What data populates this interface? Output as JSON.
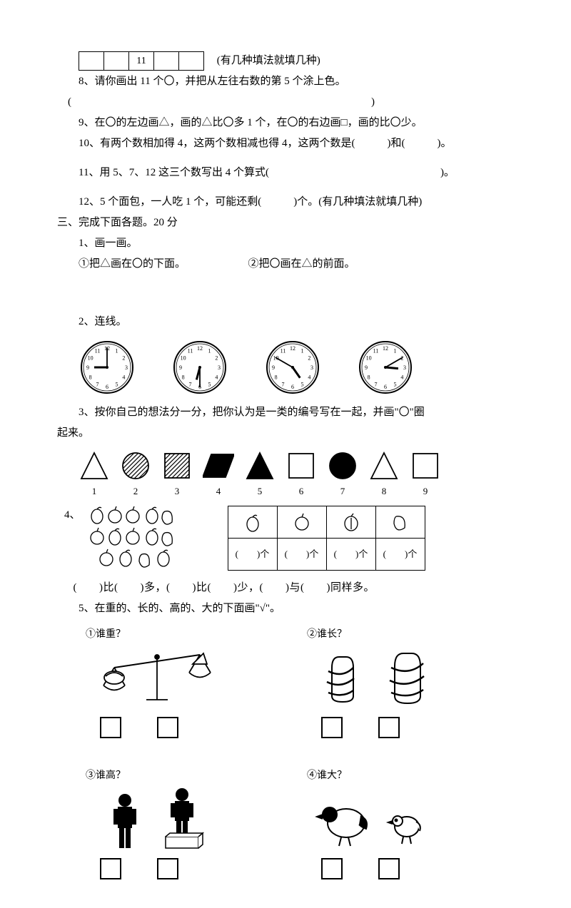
{
  "top": {
    "table_center": "11",
    "note": "(有几种填法就填几种)"
  },
  "q8": "8、请你画出 11 个〇，并把从左往右数的第 5 个涂上色。",
  "q8_blank": "(　　　　　　　　　　　　　　　　　　　　　　　　　　　　)",
  "q9": "9、在〇的左边画△，画的△比〇多 1 个，在〇的右边画□，画的比〇少。",
  "q10": "10、有两个数相加得 4，这两个数相减也得 4，这两个数是(　　　)和(　　　)。",
  "q11": "11、用 5、7、12 这三个数写出 4 个算式(　　　　　　　　　　　　　　　　)。",
  "q12": "12、5 个面包，一人吃 1 个，可能还剩(　　　)个。(有几种填法就填几种)",
  "section3": "三、完成下面各题。20 分",
  "s3_q1": "1、画一画。",
  "s3_q1a": "①把△画在〇的下面。",
  "s3_q1b": "②把〇画在△的前面。",
  "s3_q2": "2、连线。",
  "clocks": {
    "face_color": "#ffffff",
    "stroke": "#000000",
    "items": [
      {
        "hour": 9,
        "minute": 0
      },
      {
        "hour": 6,
        "minute": 30
      },
      {
        "hour": 4,
        "minute": 50
      },
      {
        "hour": 3,
        "minute": 10
      }
    ]
  },
  "s3_q3a": "3、按你自己的想法分一分，把你认为是一类的编号写在一起，并画\"〇\"圈",
  "s3_q3b": "起来。",
  "shapes": [
    {
      "n": "1",
      "type": "triangle",
      "fill": "none"
    },
    {
      "n": "2",
      "type": "circle",
      "fill": "hatch"
    },
    {
      "n": "3",
      "type": "square",
      "fill": "hatch"
    },
    {
      "n": "4",
      "type": "parallelogram",
      "fill": "#000"
    },
    {
      "n": "5",
      "type": "triangle",
      "fill": "#000"
    },
    {
      "n": "6",
      "type": "square",
      "fill": "none"
    },
    {
      "n": "7",
      "type": "circle",
      "fill": "#000"
    },
    {
      "n": "8",
      "type": "triangle",
      "fill": "none"
    },
    {
      "n": "9",
      "type": "square",
      "fill": "none"
    }
  ],
  "s3_q4_label": "4、",
  "q4_cells": [
    "(　　)个",
    "(　　)个",
    "(　　)个",
    "(　　)个"
  ],
  "q4_line": "(　　)比(　　)多，(　　)比(　　)少，(　　)与(　　)同样多。",
  "s3_q5": "5、在重的、长的、高的、大的下面画\"√\"。",
  "compare": [
    {
      "title": "①谁重？"
    },
    {
      "title": "②谁长？"
    },
    {
      "title": "③谁高？"
    },
    {
      "title": "④谁大？"
    }
  ]
}
